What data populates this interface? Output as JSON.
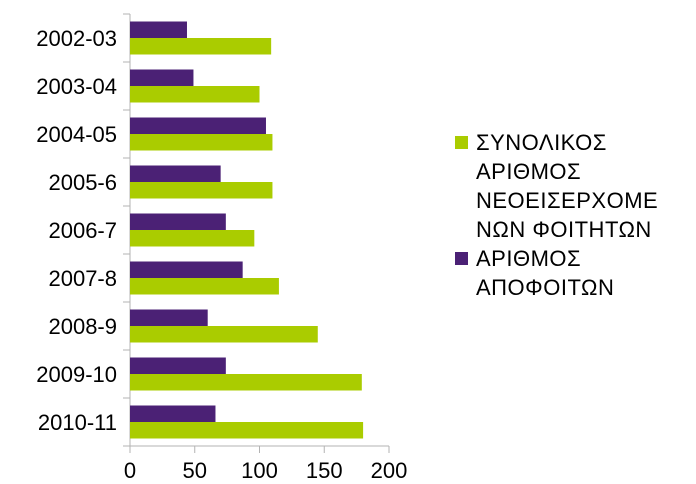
{
  "chart_data": {
    "type": "bar",
    "orientation": "horizontal",
    "categories": [
      "2002-03",
      "2003-04",
      "2004-05",
      "2005-6",
      "2006-7",
      "2007-8",
      "2008-9",
      "2009-10",
      "2010-11"
    ],
    "series": [
      {
        "name": "ΣΥΝΟΛΙΚΟΣ ΑΡΙΘΜΟΣ ΝΕΟΕΙΣΕΡΧΟΜΕΝΩΝ ΦΟΙΤΗΤΩΝ",
        "legend_lines": [
          "ΣΥΝΟΛΙΚΟΣ",
          "ΑΡΙΘΜΟΣ",
          "ΝΕΟΕΙΣΕΡΧΟΜΕ",
          "ΝΩΝ ΦΟΙΤΗΤΩΝ"
        ],
        "color": "#aacc00",
        "values": [
          109,
          100,
          110,
          110,
          96,
          115,
          145,
          179,
          180
        ]
      },
      {
        "name": "ΑΡΙΘΜΟΣ ΑΠΟΦΟΙΤΩΝ",
        "legend_lines": [
          "ΑΡΙΘΜΟΣ",
          "ΑΠΟΦΟΙΤΩΝ"
        ],
        "color": "#4b2175",
        "values": [
          44,
          49,
          105,
          70,
          74,
          87,
          60,
          74,
          66
        ]
      }
    ],
    "xlim": [
      0,
      200
    ],
    "xticks": [
      "0",
      "50",
      "100",
      "150",
      "200"
    ],
    "title": "",
    "xlabel": "",
    "ylabel": "",
    "grid": false,
    "legend_position": "right"
  }
}
